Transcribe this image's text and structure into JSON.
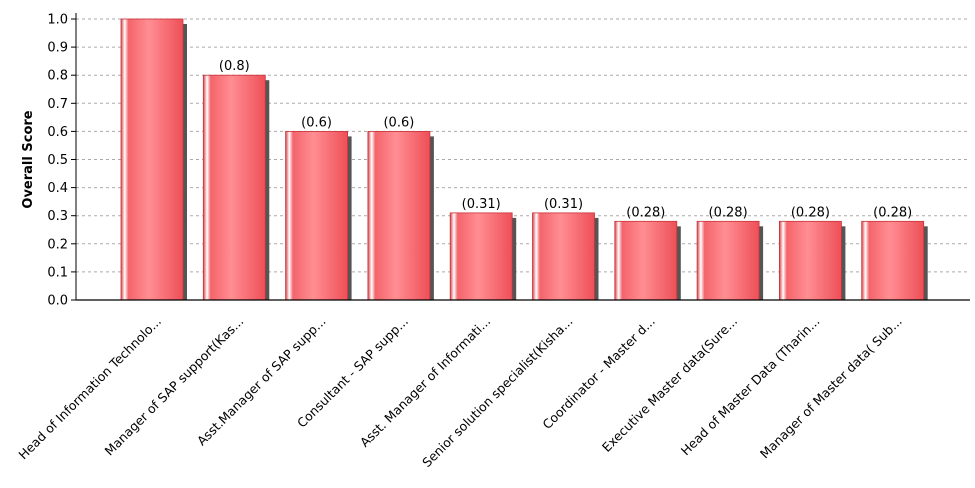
{
  "chart_data": {
    "type": "bar",
    "ylabel": "Overall Score",
    "ylim": [
      0,
      1.0
    ],
    "yticks": [
      "0.0",
      "0.1",
      "0.2",
      "0.3",
      "0.4",
      "0.5",
      "0.6",
      "0.7",
      "0.8",
      "0.9",
      "1.0"
    ],
    "grid": "horizontal-dashed",
    "categories": [
      "Head of Information Technolo...",
      "Manager of SAP support(Kas...",
      "Asst.Manager of SAP supp...",
      "Consultant - SAP supp...",
      "Asst. Manager of Informati...",
      "Senior solution specialist(Kisha...",
      "Coordinator - Master d...",
      "Executive Master data(Sure...",
      "Head of Master Data (Tharin...",
      "Manager of Master data( Sub..."
    ],
    "values": [
      1.0,
      0.8,
      0.6,
      0.6,
      0.31,
      0.31,
      0.28,
      0.28,
      0.28,
      0.28
    ],
    "data_labels": [
      "",
      "(0.8)",
      "(0.6)",
      "(0.6)",
      "(0.31)",
      "(0.31)",
      "(0.28)",
      "(0.28)",
      "(0.28)",
      "(0.28)"
    ],
    "colors": {
      "bar": "#f0555d",
      "bar_light": "#ff9a9e",
      "shadow": "#555555",
      "grid": "#aaaaaa"
    }
  }
}
